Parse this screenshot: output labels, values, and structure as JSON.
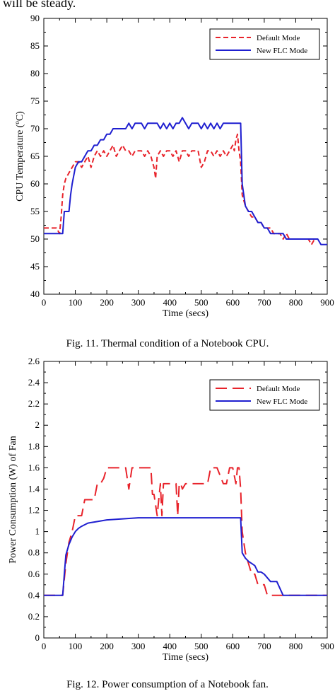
{
  "header_text": "will be steady.",
  "captions": {
    "fig11": "Fig. 11. Thermal condition of a Notebook CPU.",
    "fig12": "Fig. 12. Power consumption of a Notebook fan."
  },
  "chart_data": [
    {
      "type": "line",
      "title": "",
      "xlabel": "Time (secs)",
      "ylabel_parts": [
        "CPU Temperature (",
        "o",
        "C)"
      ],
      "xlim": [
        0,
        900
      ],
      "ylim": [
        40,
        90
      ],
      "x_ticks": [
        0,
        100,
        200,
        300,
        400,
        500,
        600,
        700,
        800,
        900
      ],
      "x_tick_labels": [
        "0",
        "100",
        "200",
        "300",
        "400",
        "500",
        "600",
        "700",
        "800",
        "900"
      ],
      "y_ticks": [
        40,
        45,
        50,
        55,
        60,
        65,
        70,
        75,
        80,
        85,
        90
      ],
      "y_tick_labels": [
        "40",
        "45",
        "50",
        "55",
        "60",
        "65",
        "70",
        "75",
        "80",
        "85",
        "90"
      ],
      "grid": false,
      "legend_position": "top-right",
      "series": [
        {
          "name": "Default Mode",
          "color": "#e8232b",
          "dash": "dashed",
          "x": [
            0,
            10,
            20,
            30,
            40,
            50,
            55,
            60,
            65,
            70,
            80,
            90,
            100,
            110,
            120,
            130,
            140,
            150,
            160,
            170,
            180,
            190,
            200,
            210,
            220,
            230,
            240,
            250,
            260,
            270,
            280,
            290,
            300,
            310,
            320,
            330,
            340,
            350,
            355,
            360,
            370,
            380,
            390,
            400,
            410,
            420,
            430,
            440,
            450,
            460,
            470,
            480,
            490,
            500,
            510,
            520,
            530,
            540,
            550,
            560,
            570,
            580,
            590,
            600,
            605,
            610,
            615,
            620,
            625,
            630,
            640,
            650,
            660,
            670,
            680,
            690,
            700,
            710,
            720,
            730,
            740,
            750,
            760,
            770,
            780,
            790,
            800,
            810,
            820,
            830,
            840,
            850,
            860,
            870
          ],
          "y": [
            52,
            52,
            52,
            52,
            52,
            51,
            54,
            58,
            60,
            61,
            62,
            63,
            64,
            64,
            63,
            64,
            65,
            63,
            65,
            66,
            65,
            66,
            65,
            66,
            67,
            65,
            66,
            67,
            66,
            66,
            65,
            66,
            66,
            66,
            65,
            66,
            65,
            63,
            61,
            65,
            66,
            65,
            66,
            66,
            65,
            66,
            64,
            66,
            66,
            65,
            66,
            66,
            66,
            63,
            64,
            66,
            66,
            65,
            66,
            65,
            66,
            65,
            66,
            67,
            66,
            68,
            69,
            66,
            64,
            58,
            56,
            55,
            54,
            54,
            53,
            53,
            52,
            52,
            52,
            51,
            51,
            51,
            50,
            51,
            50,
            50,
            50,
            50,
            50,
            50,
            50,
            49,
            50,
            50
          ]
        },
        {
          "name": "New FLC Mode",
          "color": "#1f1fd0",
          "dash": "solid",
          "x": [
            0,
            10,
            20,
            30,
            40,
            50,
            60,
            65,
            70,
            80,
            85,
            90,
            100,
            110,
            120,
            130,
            140,
            150,
            160,
            170,
            180,
            190,
            200,
            210,
            220,
            230,
            240,
            250,
            260,
            270,
            280,
            290,
            300,
            310,
            320,
            330,
            340,
            350,
            360,
            370,
            380,
            390,
            400,
            410,
            420,
            430,
            440,
            450,
            460,
            470,
            480,
            490,
            500,
            510,
            520,
            530,
            540,
            550,
            560,
            570,
            580,
            590,
            600,
            610,
            620,
            625,
            630,
            640,
            650,
            660,
            670,
            680,
            690,
            700,
            710,
            720,
            730,
            740,
            750,
            760,
            770,
            780,
            790,
            800,
            810,
            820,
            830,
            840,
            850,
            860,
            870,
            880,
            890,
            900
          ],
          "y": [
            51,
            51,
            51,
            51,
            51,
            51,
            51,
            55,
            55,
            55,
            58,
            60,
            63,
            64,
            64,
            65,
            66,
            66,
            67,
            67,
            68,
            68,
            69,
            69,
            70,
            70,
            70,
            70,
            70,
            71,
            70,
            71,
            71,
            71,
            70,
            71,
            71,
            71,
            71,
            70,
            71,
            70,
            71,
            70,
            71,
            71,
            72,
            71,
            70,
            71,
            71,
            71,
            70,
            71,
            70,
            71,
            70,
            71,
            70,
            71,
            71,
            71,
            71,
            71,
            71,
            71,
            60,
            56,
            55,
            55,
            54,
            53,
            53,
            52,
            52,
            51,
            51,
            51,
            51,
            51,
            50,
            50,
            50,
            50,
            50,
            50,
            50,
            50,
            50,
            50,
            50,
            49,
            49,
            49
          ]
        }
      ]
    },
    {
      "type": "line",
      "title": "",
      "xlabel": "Time (secs)",
      "ylabel": "Power Consumption (W) of Fan",
      "xlim": [
        0,
        900
      ],
      "ylim": [
        0,
        2.6
      ],
      "x_ticks": [
        0,
        100,
        200,
        300,
        400,
        500,
        600,
        700,
        800,
        900
      ],
      "x_tick_labels": [
        "0",
        "100",
        "200",
        "300",
        "400",
        "500",
        "600",
        "700",
        "800",
        "900"
      ],
      "y_ticks": [
        0,
        0.2,
        0.4,
        0.6,
        0.8,
        1.0,
        1.2,
        1.4,
        1.6,
        1.8,
        2.0,
        2.2,
        2.4,
        2.6
      ],
      "y_tick_labels": [
        "0",
        "0.2",
        "0.4",
        "0.6",
        "0.8",
        "1",
        "1.2",
        "1.4",
        "1.6",
        "1.8",
        "2",
        "2.2",
        "2.4",
        "2.6"
      ],
      "grid": false,
      "legend_position": "top-right",
      "series": [
        {
          "name": "Default Mode",
          "color": "#e8232b",
          "dash": "longdash",
          "x": [
            0,
            20,
            40,
            55,
            60,
            70,
            80,
            90,
            100,
            110,
            120,
            130,
            140,
            150,
            160,
            170,
            180,
            190,
            200,
            210,
            220,
            240,
            260,
            270,
            280,
            290,
            300,
            320,
            340,
            345,
            350,
            360,
            365,
            370,
            375,
            380,
            390,
            400,
            410,
            420,
            425,
            430,
            435,
            440,
            450,
            470,
            490,
            510,
            520,
            530,
            540,
            550,
            570,
            580,
            590,
            600,
            610,
            615,
            620,
            625,
            630,
            640,
            650,
            660,
            670,
            680,
            690,
            700,
            710,
            720,
            740,
            760,
            800,
            850,
            900
          ],
          "y": [
            0.4,
            0.4,
            0.4,
            0.4,
            0.4,
            0.7,
            0.9,
            1.0,
            1.15,
            1.15,
            1.15,
            1.3,
            1.3,
            1.3,
            1.3,
            1.45,
            1.45,
            1.5,
            1.6,
            1.6,
            1.6,
            1.6,
            1.6,
            1.4,
            1.6,
            1.6,
            1.6,
            1.6,
            1.6,
            1.35,
            1.35,
            1.15,
            1.3,
            1.45,
            1.15,
            1.45,
            1.45,
            1.45,
            1.45,
            1.45,
            1.15,
            1.45,
            1.45,
            1.4,
            1.45,
            1.45,
            1.45,
            1.45,
            1.45,
            1.6,
            1.6,
            1.6,
            1.45,
            1.45,
            1.6,
            1.6,
            1.45,
            1.6,
            1.6,
            1.4,
            1.0,
            0.8,
            0.7,
            0.6,
            0.6,
            0.5,
            0.5,
            0.5,
            0.4,
            0.4,
            0.4,
            0.4,
            0.4,
            0.4,
            0.4
          ]
        },
        {
          "name": "New FLC Mode",
          "color": "#1f1fd0",
          "dash": "solid",
          "x": [
            0,
            20,
            40,
            60,
            65,
            70,
            80,
            90,
            100,
            110,
            120,
            140,
            160,
            180,
            200,
            250,
            300,
            400,
            500,
            600,
            620,
            625,
            630,
            640,
            650,
            660,
            670,
            680,
            690,
            700,
            720,
            740,
            760,
            770,
            800,
            850,
            900
          ],
          "y": [
            0.4,
            0.4,
            0.4,
            0.4,
            0.6,
            0.78,
            0.88,
            0.95,
            1.0,
            1.03,
            1.05,
            1.08,
            1.09,
            1.1,
            1.11,
            1.12,
            1.13,
            1.13,
            1.13,
            1.13,
            1.13,
            1.13,
            0.8,
            0.75,
            0.72,
            0.7,
            0.68,
            0.62,
            0.62,
            0.6,
            0.53,
            0.53,
            0.4,
            0.4,
            0.4,
            0.4,
            0.4
          ]
        }
      ]
    }
  ]
}
